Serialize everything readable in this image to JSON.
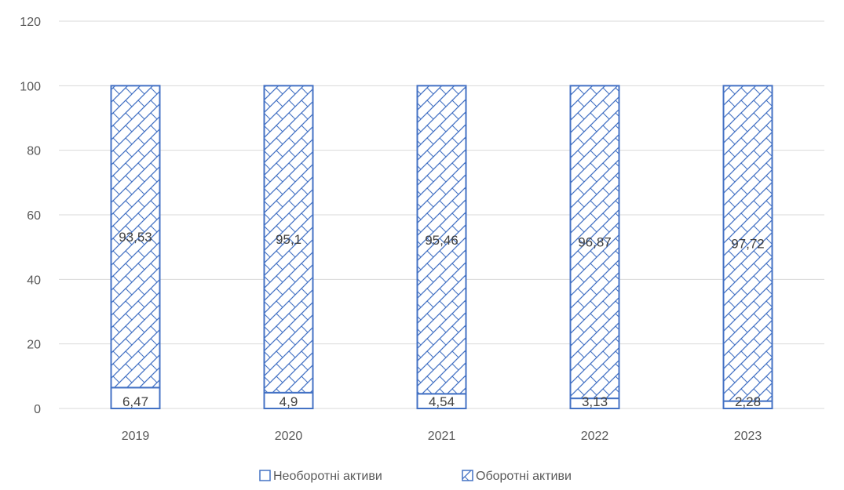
{
  "chart_data": {
    "type": "bar",
    "stacked": true,
    "categories": [
      "2019",
      "2020",
      "2021",
      "2022",
      "2023"
    ],
    "series": [
      {
        "name": "Необоротні активи",
        "values": [
          6.47,
          4.9,
          4.54,
          3.13,
          2.28
        ],
        "labels": [
          "6,47",
          "4,9",
          "4,54",
          "3,13",
          "2,28"
        ],
        "pattern": "none"
      },
      {
        "name": "Оборотні активи",
        "values": [
          93.53,
          95.1,
          95.46,
          96.87,
          97.72
        ],
        "labels": [
          "93,53",
          "95,1",
          "95,46",
          "96,87",
          "97,72"
        ],
        "pattern": "hatched"
      }
    ],
    "yticks": [
      "0",
      "20",
      "40",
      "60",
      "80",
      "100",
      "120"
    ],
    "ylim": [
      0,
      120
    ],
    "grid": true,
    "legend_position": "bottom",
    "colors": {
      "bar_stroke": "#4472C4",
      "gridline": "#D9D9D9",
      "tick_text": "#595959",
      "label_text": "#404040"
    }
  }
}
